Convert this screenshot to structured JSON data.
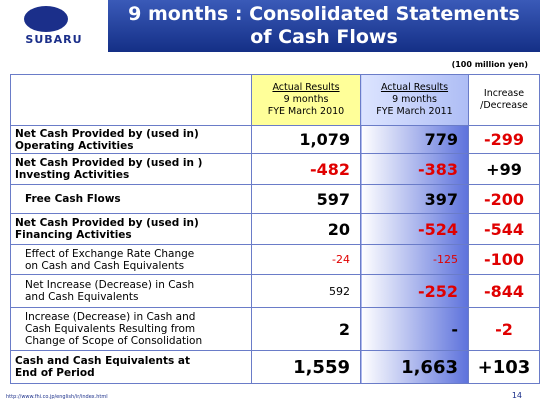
{
  "header": {
    "logo": "SUBARU",
    "title": [
      "9 months : Consolidated Statements",
      "of Cash Flows"
    ]
  },
  "unit": "(100 million yen)",
  "table": {
    "columns": [
      [
        "Actual Results",
        "9 months",
        "FYE March 2010"
      ],
      [
        "Actual Results",
        "9 months",
        "FYE March 2011"
      ],
      [
        "Increase",
        "/Decrease"
      ]
    ],
    "rows": [
      {
        "label": [
          "Net Cash Provided by (used in)",
          "Operating Activities"
        ],
        "values": [
          "1,079",
          "779",
          "-299"
        ]
      },
      {
        "label": [
          "Net Cash Provided by (used in )",
          "Investing Activities"
        ],
        "values": [
          "-482",
          "-383",
          "+99"
        ]
      },
      {
        "label": [
          "Free Cash Flows"
        ],
        "values": [
          "597",
          "397",
          "-200"
        ]
      },
      {
        "label": [
          "Net Cash Provided by (used in)",
          "Financing Activities"
        ],
        "values": [
          "20",
          "-524",
          "-544"
        ]
      },
      {
        "label": [
          "Effect of Exchange Rate Change",
          "on Cash and Cash Equivalents"
        ],
        "values": [
          "-24",
          "-125",
          "-100"
        ]
      },
      {
        "label": [
          "Net Increase (Decrease) in Cash",
          "and Cash Equivalents"
        ],
        "values": [
          "592",
          "-252",
          "-844"
        ]
      },
      {
        "label": [
          "Increase (Decrease) in Cash and",
          "Cash Equivalents Resulting from",
          "Change of Scope of Consolidation"
        ],
        "values": [
          "2",
          "-",
          "-2"
        ]
      },
      {
        "label": [
          "Cash and Cash Equivalents at",
          "End of Period"
        ],
        "values": [
          "1,559",
          "1,663",
          "+103"
        ]
      }
    ]
  },
  "footer": {
    "url": "http://www.fhi.co.jp/english/ir/index.html",
    "page": "14"
  }
}
